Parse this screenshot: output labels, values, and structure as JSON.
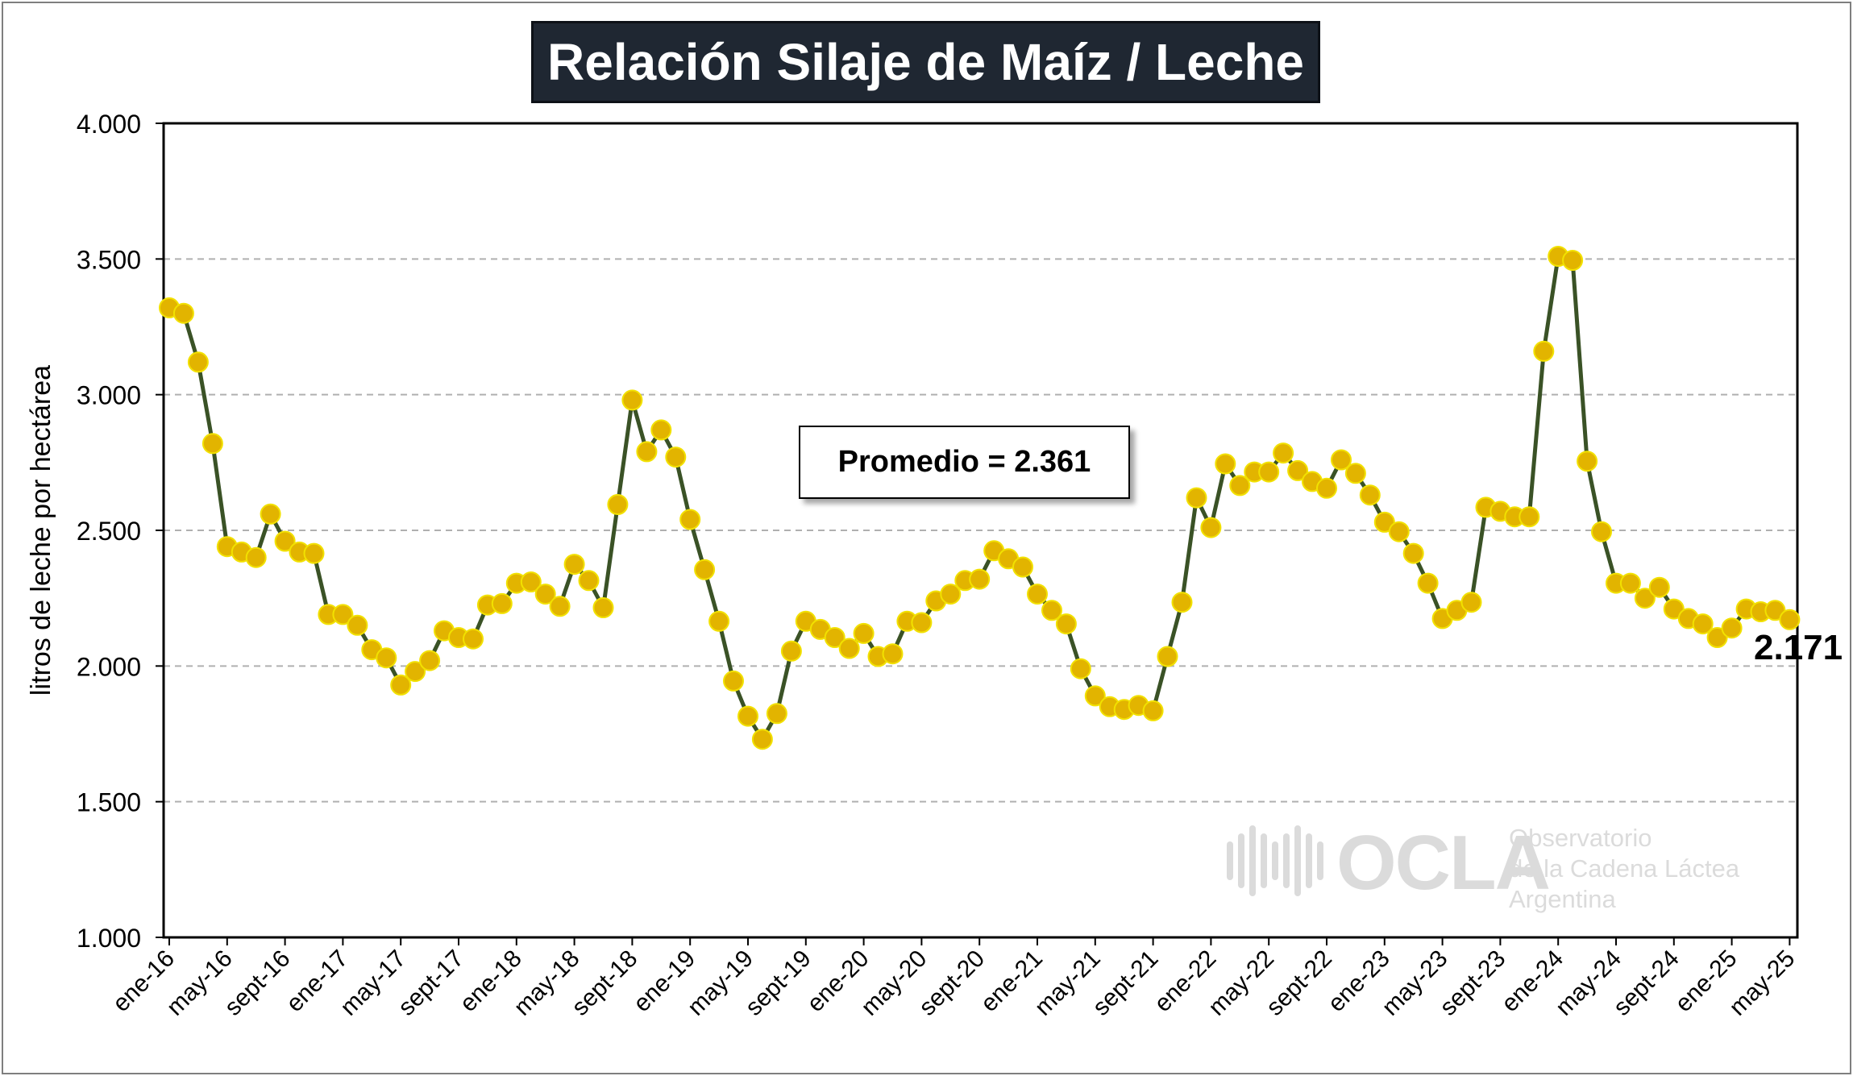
{
  "chart_data": {
    "type": "line",
    "title": "Relación Silaje de Maíz / Leche",
    "ylabel": "litros de leche por hectárea",
    "xlabel": "",
    "ylim": [
      1000,
      4000
    ],
    "y_ticks": [
      "1.000",
      "1.500",
      "2.000",
      "2.500",
      "3.000",
      "3.500",
      "4.000"
    ],
    "y_tick_values": [
      1000,
      1500,
      2000,
      2500,
      3000,
      3500,
      4000
    ],
    "x_tick_labels": [
      "ene-16",
      "may-16",
      "sept-16",
      "ene-17",
      "may-17",
      "sept-17",
      "ene-18",
      "may-18",
      "sept-18",
      "ene-19",
      "may-19",
      "sept-19",
      "ene-20",
      "may-20",
      "sept-20",
      "ene-21",
      "may-21",
      "sept-21",
      "ene-22",
      "may-22",
      "sept-22",
      "ene-23",
      "may-23",
      "sept-23",
      "ene-24",
      "may-24",
      "sept-24",
      "ene-25",
      "may-25"
    ],
    "grid": "horizontal dashed",
    "line_color": "#3a5226",
    "marker_color": "#e2b400",
    "marker_edge": "#f2e100",
    "annotation_avg": "Promedio = 2.361",
    "last_value_label": "2.171",
    "values": [
      3320,
      3300,
      3120,
      2820,
      2440,
      2420,
      2400,
      2560,
      2460,
      2420,
      2415,
      2190,
      2190,
      2150,
      2060,
      2030,
      1930,
      1980,
      2020,
      2130,
      2105,
      2100,
      2225,
      2230,
      2305,
      2310,
      2265,
      2220,
      2375,
      2315,
      2215,
      2595,
      2980,
      2790,
      2870,
      2770,
      2540,
      2355,
      2165,
      1945,
      1815,
      1730,
      1825,
      2055,
      2165,
      2135,
      2105,
      2065,
      2120,
      2035,
      2045,
      2165,
      2160,
      2240,
      2265,
      2315,
      2320,
      2425,
      2395,
      2365,
      2265,
      2205,
      2155,
      1990,
      1890,
      1850,
      1840,
      1855,
      1835,
      2035,
      2235,
      2620,
      2510,
      2745,
      2665,
      2715,
      2715,
      2785,
      2720,
      2680,
      2655,
      2760,
      2710,
      2630,
      2530,
      2495,
      2415,
      2305,
      2175,
      2205,
      2235,
      2585,
      2570,
      2550,
      2550,
      3160,
      3510,
      3495,
      2755,
      2495,
      2305,
      2305,
      2250,
      2290,
      2210,
      2175,
      2155,
      2105,
      2140,
      2210,
      2200,
      2205,
      2171
    ]
  },
  "watermark": {
    "brand": "OCLA",
    "line1": "Observatorio",
    "line2": "de la Cadena Láctea",
    "line3": "Argentina"
  }
}
